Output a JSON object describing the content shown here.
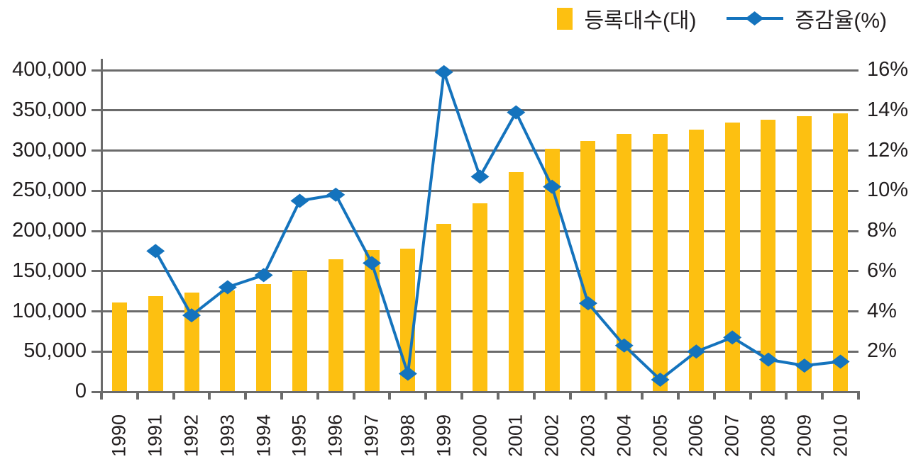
{
  "legend": {
    "items": [
      {
        "label": "등록대수(대)",
        "swatch": "bar-swatch"
      },
      {
        "label": "증감율(%)",
        "swatch": "line-diamond-swatch"
      }
    ]
  },
  "chart_data": {
    "type": "bar",
    "subtype": "combo-bar-line",
    "title": "",
    "categories": [
      "1990",
      "1991",
      "1992",
      "1993",
      "1994",
      "1995",
      "1996",
      "1997",
      "1998",
      "1999",
      "2000",
      "2001",
      "2002",
      "2003",
      "2004",
      "2005",
      "2006",
      "2007",
      "2008",
      "2009",
      "2010"
    ],
    "series": [
      {
        "name": "등록대수(대)",
        "type": "bar",
        "axis": "left",
        "values": [
          111000,
          119000,
          123000,
          126000,
          134000,
          151000,
          165000,
          176000,
          178000,
          209000,
          234000,
          273000,
          302000,
          312000,
          321000,
          321000,
          326000,
          335000,
          338000,
          343000,
          346000
        ]
      },
      {
        "name": "증감율(%)",
        "type": "line",
        "axis": "right",
        "values": [
          null,
          7.0,
          3.8,
          5.2,
          5.8,
          9.5,
          9.8,
          6.4,
          0.9,
          15.9,
          10.7,
          13.9,
          10.2,
          4.4,
          2.3,
          0.6,
          2.0,
          2.7,
          1.6,
          1.3,
          1.5
        ]
      }
    ],
    "left_axis": {
      "min": 0,
      "max": 400000,
      "step": 50000,
      "tick_labels": [
        "0",
        "50,000",
        "100,000",
        "150,000",
        "200,000",
        "250,000",
        "300,000",
        "350,000",
        "400,000"
      ]
    },
    "right_axis": {
      "min": 0,
      "max": 16,
      "step": 2,
      "tick_labels": [
        "2%",
        "4%",
        "6%",
        "8%",
        "10%",
        "12%",
        "14%",
        "16%"
      ]
    },
    "legend_position": "top-right",
    "grid": true
  },
  "colors": {
    "bar": "#FDC011",
    "line": "#1473BD",
    "grid": "#6B6B6B",
    "text": "#231F20",
    "background": "#FFFFFF"
  }
}
